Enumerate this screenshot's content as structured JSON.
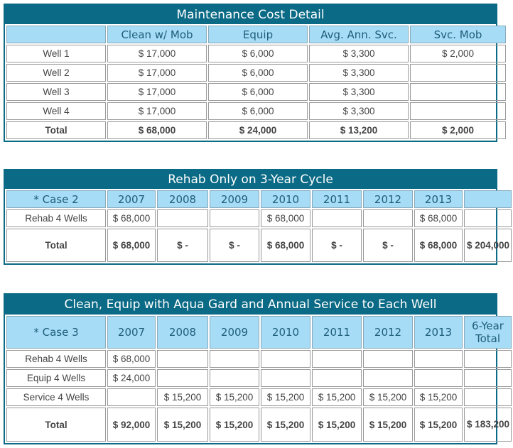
{
  "tables": [
    {
      "title": "Maintenance Cost Detail",
      "header": [
        null,
        "Clean w/ Mob",
        "Equip",
        "Avg. Ann. Svc.",
        "Svc. Mob"
      ],
      "rows": [
        [
          "Well 1",
          "$ 17,000",
          "$ 6,000",
          "$ 3,300",
          "$ 2,000"
        ],
        [
          "Well 2",
          "$ 17,000",
          "$ 6,000",
          "$ 3,300",
          null
        ],
        [
          "Well 3",
          "$ 17,000",
          "$ 6,000",
          "$ 3,300",
          null
        ],
        [
          "Well 4",
          "$ 17,000",
          "$ 6,000",
          "$ 3,300",
          null
        ],
        [
          "Total",
          "$ 68,000",
          "$ 24,000",
          "$ 13,200",
          "$ 2,000"
        ]
      ]
    },
    {
      "title": "Rehab Only on 3-Year Cycle",
      "header": [
        "* Case 2",
        "2007",
        "2008",
        "2009",
        "2010",
        "2011",
        "2012",
        "2013",
        null
      ],
      "rows": [
        [
          "Rehab 4 Wells",
          "$ 68,000",
          null,
          null,
          "$ 68,000",
          null,
          null,
          "$ 68,000",
          null
        ],
        [
          "Total",
          "$ 68,000",
          "$ -",
          "$ -",
          "$ 68,000",
          "$ -",
          "$ -",
          "$ 68,000",
          "$ 204,000"
        ]
      ]
    },
    {
      "title": "Clean, Equip with Aqua Gard and Annual Service to Each Well",
      "header": [
        "* Case 3",
        "2007",
        "2008",
        "2009",
        "2010",
        "2011",
        "2012",
        "2013",
        "6-Year Total"
      ],
      "rows": [
        [
          "Rehab 4 Wells",
          "$ 68,000",
          null,
          null,
          null,
          null,
          null,
          null,
          null
        ],
        [
          "Equip 4 Wells",
          "$ 24,000",
          null,
          null,
          null,
          null,
          null,
          null,
          null
        ],
        [
          "Service 4 Wells",
          null,
          "$ 15,200",
          "$ 15,200",
          "$ 15,200",
          "$ 15,200",
          "$ 15,200",
          "$ 15,200",
          null
        ],
        [
          "Total",
          "$ 92,000",
          "$ 15,200",
          "$ 15,200",
          "$ 15,200",
          "$ 15,200",
          "$ 15,200",
          "$ 15,200",
          "$ 183,200"
        ]
      ]
    }
  ]
}
